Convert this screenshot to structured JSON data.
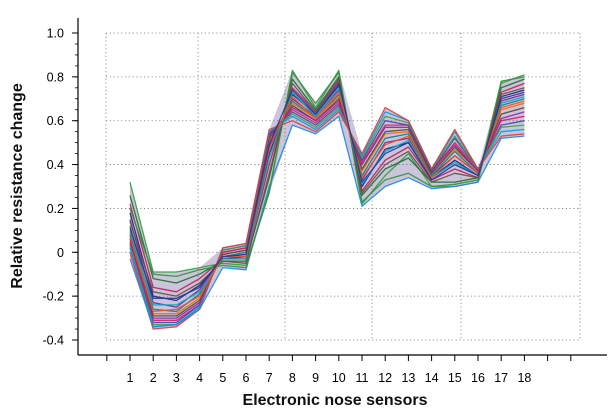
{
  "chart_data": {
    "type": "line",
    "title": "",
    "xlabel": "Electronic nose sensors",
    "ylabel": "Relative resistance change",
    "x_ticks": [
      "1",
      "2",
      "3",
      "4",
      "5",
      "6",
      "7",
      "8",
      "9",
      "10",
      "11",
      "12",
      "13",
      "14",
      "15",
      "16",
      "17",
      "18"
    ],
    "y_ticks": [
      "1.0",
      "0.8",
      "0.6",
      "0.4",
      "0.2",
      "0",
      "-0.2",
      "-0.4"
    ],
    "ylim": [
      -0.45,
      1.07
    ],
    "grid": "dotted",
    "legend": "none",
    "series_count_note": "many overlapping multicolored series",
    "envelope": {
      "x": [
        1,
        2,
        3,
        4,
        5,
        6,
        7,
        8,
        9,
        10,
        11,
        12,
        13,
        14,
        15,
        16,
        17,
        18
      ],
      "upper": [
        0.32,
        -0.09,
        -0.09,
        -0.07,
        0.02,
        0.04,
        0.56,
        0.83,
        0.68,
        0.83,
        0.45,
        0.66,
        0.6,
        0.38,
        0.56,
        0.38,
        0.78,
        0.81
      ],
      "lower": [
        -0.03,
        -0.35,
        -0.34,
        -0.26,
        -0.07,
        -0.08,
        0.27,
        0.58,
        0.54,
        0.62,
        0.21,
        0.3,
        0.34,
        0.29,
        0.3,
        0.32,
        0.52,
        0.53
      ]
    },
    "series": [
      {
        "values": [
          0.32,
          -0.09,
          -0.09,
          -0.07,
          -0.05,
          -0.06,
          0.27,
          0.83,
          0.66,
          0.83,
          0.22,
          0.35,
          0.45,
          0.3,
          0.3,
          0.32,
          0.77,
          0.81
        ],
        "color": "#2e9e3e"
      },
      {
        "values": [
          0.26,
          -0.12,
          -0.14,
          -0.1,
          -0.04,
          -0.04,
          0.34,
          0.79,
          0.65,
          0.8,
          0.26,
          0.38,
          0.43,
          0.32,
          0.32,
          0.34,
          0.75,
          0.79
        ],
        "color": "#1f6b2a"
      },
      {
        "values": [
          0.22,
          -0.16,
          -0.18,
          -0.12,
          -0.03,
          -0.03,
          0.4,
          0.75,
          0.64,
          0.78,
          0.28,
          0.42,
          0.48,
          0.33,
          0.38,
          0.34,
          0.73,
          0.77
        ],
        "color": "#c2185b"
      },
      {
        "values": [
          0.18,
          -0.2,
          -0.22,
          -0.15,
          -0.03,
          -0.02,
          0.45,
          0.72,
          0.63,
          0.76,
          0.3,
          0.47,
          0.5,
          0.34,
          0.42,
          0.35,
          0.71,
          0.74
        ],
        "color": "#1a237e"
      },
      {
        "values": [
          0.15,
          -0.23,
          -0.25,
          -0.17,
          -0.02,
          -0.01,
          0.48,
          0.7,
          0.62,
          0.74,
          0.33,
          0.5,
          0.52,
          0.35,
          0.44,
          0.36,
          0.69,
          0.72
        ],
        "color": "#7b1fa2"
      },
      {
        "values": [
          0.12,
          -0.26,
          -0.27,
          -0.19,
          -0.02,
          0.0,
          0.5,
          0.69,
          0.61,
          0.72,
          0.35,
          0.52,
          0.54,
          0.35,
          0.46,
          0.36,
          0.67,
          0.7
        ],
        "color": "#00838f"
      },
      {
        "values": [
          0.1,
          -0.28,
          -0.28,
          -0.21,
          -0.01,
          0.01,
          0.51,
          0.68,
          0.61,
          0.71,
          0.37,
          0.54,
          0.55,
          0.36,
          0.47,
          0.37,
          0.65,
          0.68
        ],
        "color": "#ef6c00"
      },
      {
        "values": [
          0.08,
          -0.29,
          -0.29,
          -0.22,
          -0.01,
          0.01,
          0.52,
          0.67,
          0.6,
          0.7,
          0.38,
          0.55,
          0.56,
          0.36,
          0.48,
          0.37,
          0.63,
          0.66
        ],
        "color": "#5d4037"
      },
      {
        "values": [
          0.06,
          -0.3,
          -0.3,
          -0.23,
          0.0,
          0.02,
          0.53,
          0.66,
          0.6,
          0.69,
          0.4,
          0.57,
          0.57,
          0.37,
          0.49,
          0.37,
          0.61,
          0.64
        ],
        "color": "#8e24aa"
      },
      {
        "values": [
          0.05,
          -0.31,
          -0.31,
          -0.24,
          0.0,
          0.02,
          0.54,
          0.65,
          0.59,
          0.68,
          0.41,
          0.58,
          0.58,
          0.37,
          0.5,
          0.38,
          0.6,
          0.62
        ],
        "color": "#d81b60"
      },
      {
        "values": [
          0.04,
          -0.32,
          -0.32,
          -0.24,
          0.01,
          0.03,
          0.54,
          0.64,
          0.58,
          0.67,
          0.42,
          0.6,
          0.58,
          0.37,
          0.52,
          0.38,
          0.58,
          0.6
        ],
        "color": "#3949ab"
      },
      {
        "values": [
          0.03,
          -0.33,
          -0.33,
          -0.25,
          0.01,
          0.03,
          0.55,
          0.63,
          0.57,
          0.66,
          0.43,
          0.62,
          0.59,
          0.38,
          0.53,
          0.38,
          0.57,
          0.58
        ],
        "color": "#43a047"
      },
      {
        "values": [
          0.02,
          -0.34,
          -0.33,
          -0.25,
          0.02,
          0.04,
          0.55,
          0.62,
          0.56,
          0.65,
          0.44,
          0.64,
          0.6,
          0.38,
          0.55,
          0.38,
          0.55,
          0.56
        ],
        "color": "#039be5"
      },
      {
        "values": [
          0.0,
          -0.35,
          -0.34,
          -0.26,
          0.02,
          0.04,
          0.56,
          0.6,
          0.55,
          0.64,
          0.45,
          0.66,
          0.6,
          0.38,
          0.56,
          0.38,
          0.53,
          0.54
        ],
        "color": "#e53935"
      },
      {
        "values": [
          -0.03,
          -0.34,
          -0.33,
          -0.26,
          -0.07,
          -0.08,
          0.3,
          0.58,
          0.54,
          0.62,
          0.21,
          0.3,
          0.34,
          0.29,
          0.3,
          0.32,
          0.52,
          0.53
        ],
        "color": "#1e88e5"
      },
      {
        "values": [
          0.2,
          -0.1,
          -0.11,
          -0.08,
          -0.06,
          -0.07,
          0.28,
          0.82,
          0.68,
          0.82,
          0.23,
          0.33,
          0.36,
          0.3,
          0.31,
          0.33,
          0.78,
          0.8
        ],
        "color": "#388e3c"
      },
      {
        "values": [
          0.14,
          -0.18,
          -0.2,
          -0.14,
          -0.04,
          -0.05,
          0.36,
          0.77,
          0.64,
          0.79,
          0.27,
          0.4,
          0.46,
          0.32,
          0.36,
          0.34,
          0.72,
          0.75
        ],
        "color": "#6d4c41"
      },
      {
        "values": [
          0.09,
          -0.24,
          -0.24,
          -0.18,
          -0.03,
          -0.03,
          0.43,
          0.73,
          0.62,
          0.75,
          0.31,
          0.46,
          0.51,
          0.34,
          0.41,
          0.35,
          0.68,
          0.71
        ],
        "color": "#00acc1"
      },
      {
        "values": [
          0.07,
          -0.27,
          -0.26,
          -0.2,
          -0.02,
          -0.02,
          0.47,
          0.71,
          0.61,
          0.73,
          0.34,
          0.49,
          0.53,
          0.34,
          0.44,
          0.36,
          0.66,
          0.69
        ],
        "color": "#f4511e"
      },
      {
        "values": [
          0.11,
          -0.21,
          -0.21,
          -0.16,
          -0.02,
          -0.01,
          0.49,
          0.74,
          0.63,
          0.77,
          0.32,
          0.45,
          0.5,
          0.33,
          0.4,
          0.35,
          0.7,
          0.73
        ],
        "color": "#283593"
      }
    ]
  }
}
